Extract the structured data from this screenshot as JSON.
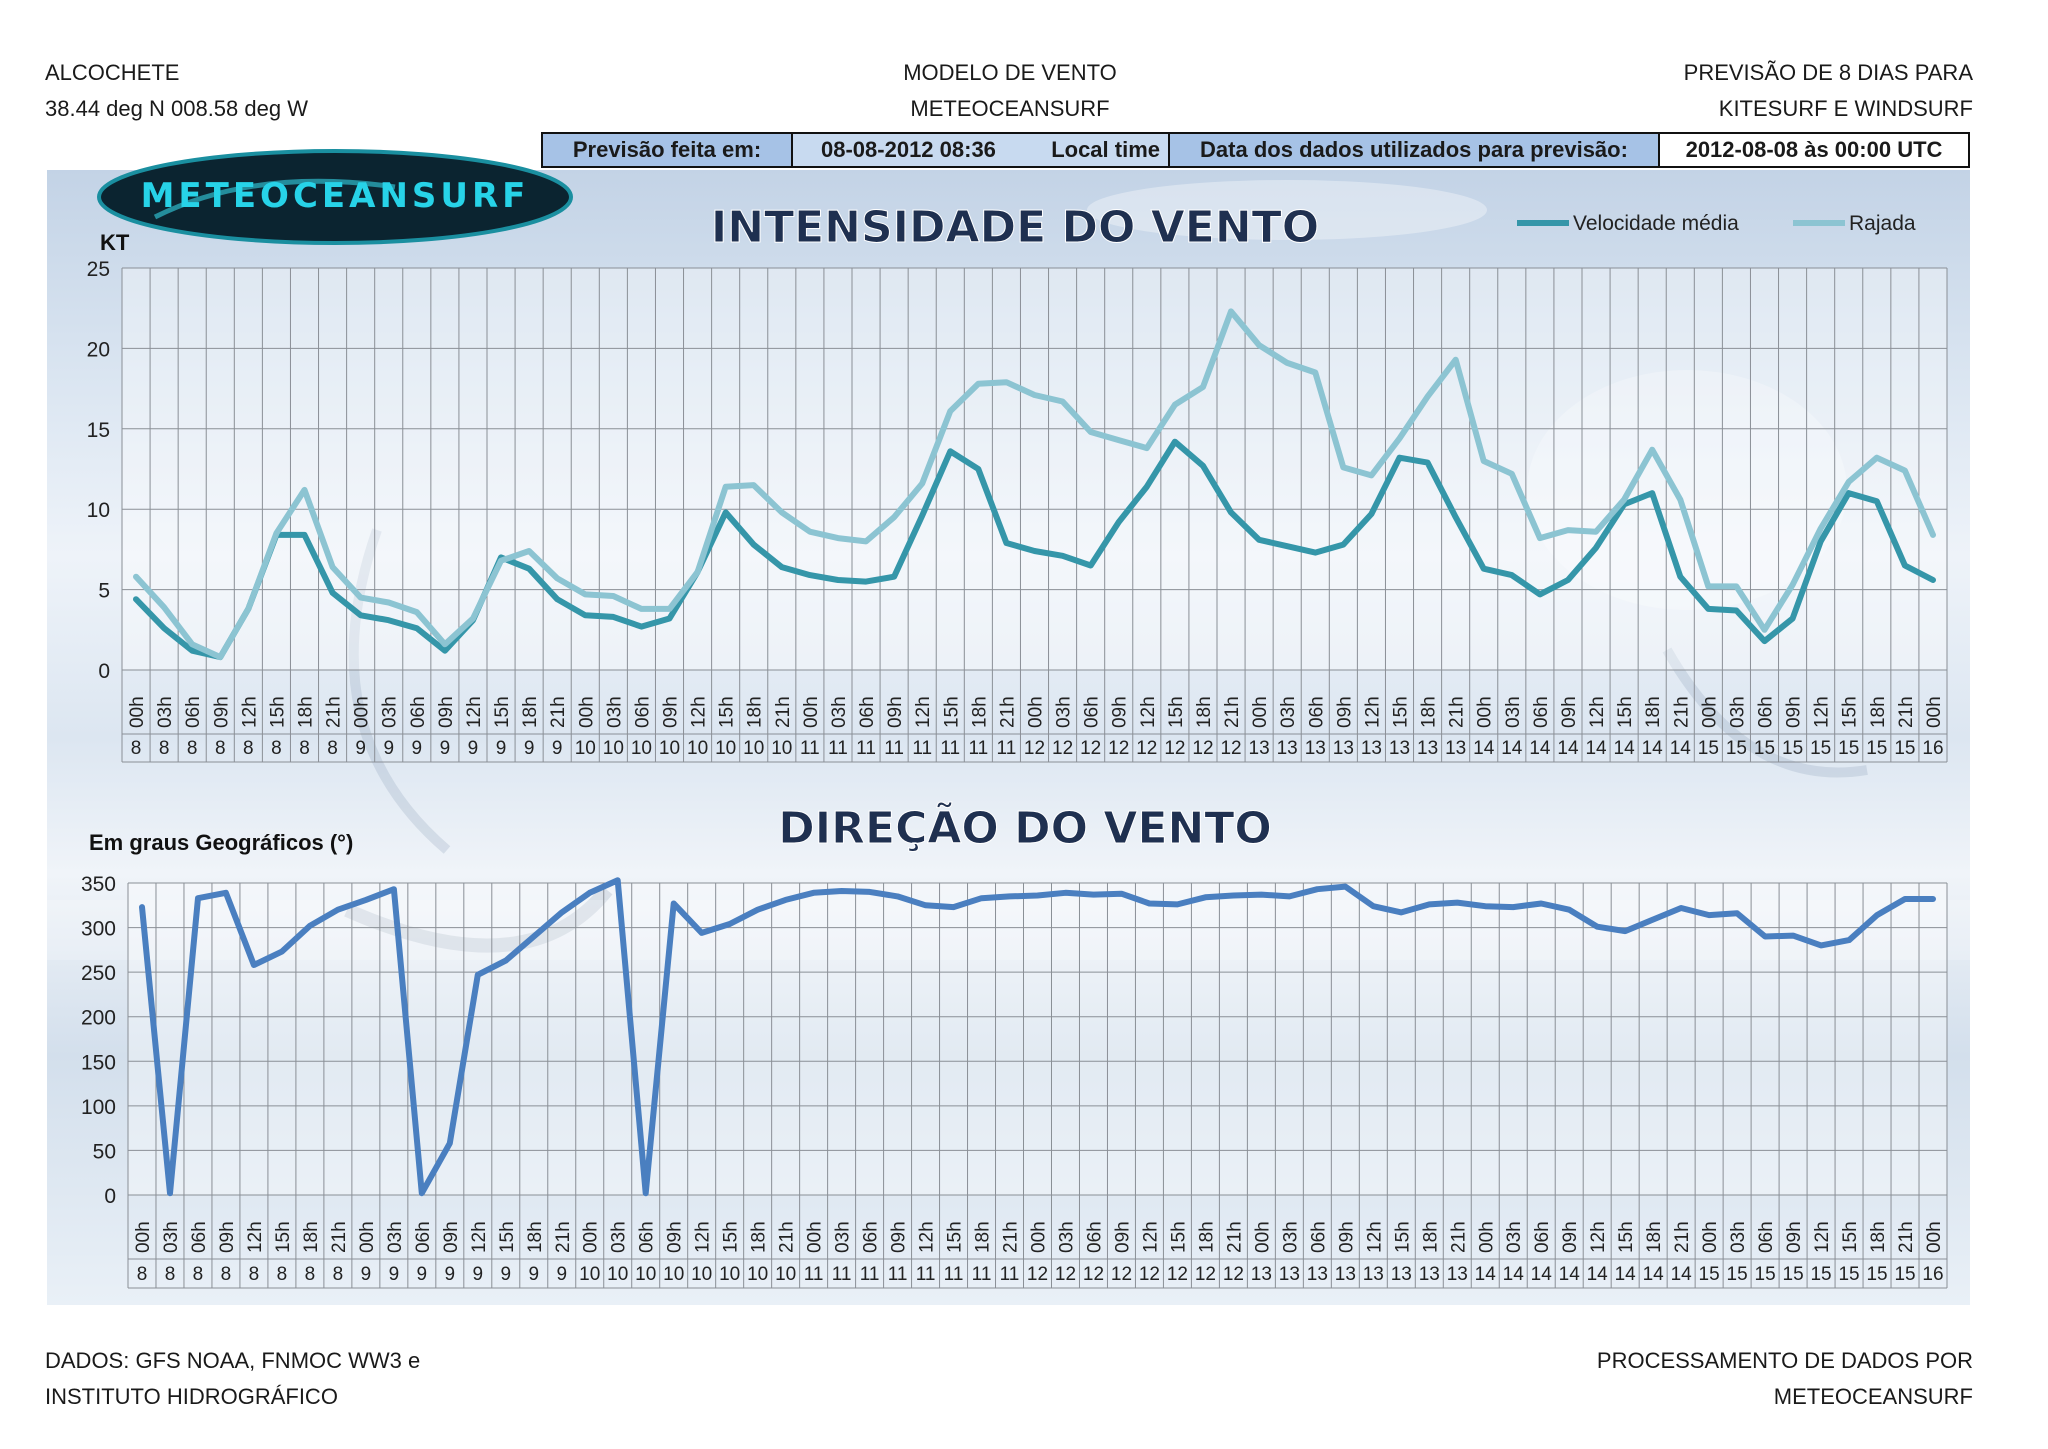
{
  "header": {
    "location_name": "ALCOCHETE",
    "coordinates": "38.44 deg N 008.58 deg W",
    "model_line1": "MODELO DE VENTO",
    "model_line2": "METEOCEANSURF",
    "forecast_line1": "PREVISÃO DE 8 DIAS PARA",
    "forecast_line2": "KITESURF E WINDSURF"
  },
  "infobar": {
    "made_label": "Previsão feita em:",
    "made_value": "08-08-2012 08:36",
    "local_time": "Local time",
    "data_label": "Data dos dados utilizados para previsão:",
    "data_value": "2012-08-08  às  00:00 UTC"
  },
  "logo": {
    "text": "METEOCEANSURF",
    "colors": {
      "ring": "#1a8fa0",
      "fill": "#0b2430",
      "text": "#27d3e8"
    }
  },
  "footer": {
    "left_line1": "DADOS: GFS NOAA, FNMOC WW3 e",
    "left_line2": "INSTITUTO HIDROGRÁFICO",
    "right_line1": "PROCESSAMENTO DE DADOS POR",
    "right_line2": "METEOCEANSURF"
  },
  "chart_data": [
    {
      "type": "line",
      "title": "INTENSIDADE DO VENTO",
      "ylabel": "KT",
      "ylim": [
        0,
        25
      ],
      "yticks": [
        0,
        5,
        10,
        15,
        20,
        25
      ],
      "grid": true,
      "legend_position": "top-right",
      "hours": [
        "00h",
        "03h",
        "06h",
        "09h",
        "12h",
        "15h",
        "18h",
        "21h",
        "00h",
        "03h",
        "06h",
        "09h",
        "12h",
        "15h",
        "18h",
        "21h",
        "00h",
        "03h",
        "06h",
        "09h",
        "12h",
        "15h",
        "18h",
        "21h",
        "00h",
        "03h",
        "06h",
        "09h",
        "12h",
        "15h",
        "18h",
        "21h",
        "00h",
        "03h",
        "06h",
        "09h",
        "12h",
        "15h",
        "18h",
        "21h",
        "00h",
        "03h",
        "06h",
        "09h",
        "12h",
        "15h",
        "18h",
        "21h",
        "00h",
        "03h",
        "06h",
        "09h",
        "12h",
        "15h",
        "18h",
        "21h",
        "00h",
        "03h",
        "06h",
        "09h",
        "12h",
        "15h",
        "18h",
        "21h",
        "00h"
      ],
      "days": [
        "8",
        "8",
        "8",
        "8",
        "8",
        "8",
        "8",
        "8",
        "9",
        "9",
        "9",
        "9",
        "9",
        "9",
        "9",
        "9",
        "10",
        "10",
        "10",
        "10",
        "10",
        "10",
        "10",
        "10",
        "11",
        "11",
        "11",
        "11",
        "11",
        "11",
        "11",
        "11",
        "12",
        "12",
        "12",
        "12",
        "12",
        "12",
        "12",
        "12",
        "13",
        "13",
        "13",
        "13",
        "13",
        "13",
        "13",
        "13",
        "14",
        "14",
        "14",
        "14",
        "14",
        "14",
        "14",
        "14",
        "15",
        "15",
        "15",
        "15",
        "15",
        "15",
        "15",
        "15",
        "16"
      ],
      "series": [
        {
          "name": "Velocidade média",
          "color": "#3596a9",
          "values": [
            4.4,
            2.6,
            1.2,
            0.8,
            3.8,
            8.4,
            8.4,
            4.8,
            3.4,
            3.1,
            2.6,
            1.2,
            3.1,
            7.0,
            6.3,
            4.4,
            3.4,
            3.3,
            2.7,
            3.2,
            6.1,
            9.8,
            7.8,
            6.4,
            5.9,
            5.6,
            5.5,
            5.8,
            9.6,
            13.6,
            12.5,
            7.9,
            7.4,
            7.1,
            6.5,
            9.2,
            11.4,
            14.2,
            12.7,
            9.8,
            8.1,
            7.7,
            7.3,
            7.8,
            9.7,
            13.2,
            12.9,
            9.5,
            6.3,
            5.9,
            4.7,
            5.6,
            7.6,
            10.3,
            11.0,
            5.8,
            3.8,
            3.7,
            1.8,
            3.2,
            8.0,
            11.0,
            10.5,
            6.5,
            5.6
          ]
        },
        {
          "name": "Rajada",
          "color": "#8cc4d2",
          "values": [
            5.8,
            3.9,
            1.6,
            0.8,
            3.8,
            8.5,
            11.2,
            6.4,
            4.5,
            4.2,
            3.6,
            1.6,
            3.2,
            6.8,
            7.4,
            5.7,
            4.7,
            4.6,
            3.8,
            3.8,
            6.1,
            11.4,
            11.5,
            9.8,
            8.6,
            8.2,
            8.0,
            9.5,
            11.6,
            16.1,
            17.8,
            17.9,
            17.1,
            16.7,
            14.8,
            14.3,
            13.8,
            16.5,
            17.6,
            22.3,
            20.2,
            19.1,
            18.5,
            12.6,
            12.1,
            14.4,
            17.0,
            19.3,
            13.0,
            12.2,
            8.2,
            8.7,
            8.6,
            10.6,
            13.7,
            10.6,
            5.2,
            5.2,
            2.5,
            5.3,
            8.8,
            11.7,
            13.2,
            12.4,
            8.4
          ]
        }
      ]
    },
    {
      "type": "line",
      "title": "DIREÇÃO DO VENTO",
      "ylabel": "Em graus Geográficos (°)",
      "ylim": [
        0,
        350
      ],
      "yticks": [
        0,
        50,
        100,
        150,
        200,
        250,
        300,
        350
      ],
      "grid": true,
      "hours": [
        "00h",
        "03h",
        "06h",
        "09h",
        "12h",
        "15h",
        "18h",
        "21h",
        "00h",
        "03h",
        "06h",
        "09h",
        "12h",
        "15h",
        "18h",
        "21h",
        "00h",
        "03h",
        "06h",
        "09h",
        "12h",
        "15h",
        "18h",
        "21h",
        "00h",
        "03h",
        "06h",
        "09h",
        "12h",
        "15h",
        "18h",
        "21h",
        "00h",
        "03h",
        "06h",
        "09h",
        "12h",
        "15h",
        "18h",
        "21h",
        "00h",
        "03h",
        "06h",
        "09h",
        "12h",
        "15h",
        "18h",
        "21h",
        "00h",
        "03h",
        "06h",
        "09h",
        "12h",
        "15h",
        "18h",
        "21h",
        "00h",
        "03h",
        "06h",
        "09h",
        "12h",
        "15h",
        "18h",
        "21h",
        "00h"
      ],
      "days": [
        "8",
        "8",
        "8",
        "8",
        "8",
        "8",
        "8",
        "8",
        "9",
        "9",
        "9",
        "9",
        "9",
        "9",
        "9",
        "9",
        "10",
        "10",
        "10",
        "10",
        "10",
        "10",
        "10",
        "10",
        "11",
        "11",
        "11",
        "11",
        "11",
        "11",
        "11",
        "11",
        "12",
        "12",
        "12",
        "12",
        "12",
        "12",
        "12",
        "12",
        "13",
        "13",
        "13",
        "13",
        "13",
        "13",
        "13",
        "13",
        "14",
        "14",
        "14",
        "14",
        "14",
        "14",
        "14",
        "14",
        "15",
        "15",
        "15",
        "15",
        "15",
        "15",
        "15",
        "15",
        "16"
      ],
      "series": [
        {
          "color": "#4a7fc0",
          "values": [
            323,
            2,
            333,
            339,
            258,
            273,
            302,
            320,
            331,
            343,
            2,
            58,
            247,
            263,
            290,
            317,
            339,
            353,
            2,
            327,
            294,
            304,
            320,
            331,
            339,
            341,
            340,
            335,
            325,
            323,
            333,
            335,
            336,
            339,
            337,
            338,
            327,
            326,
            334,
            336,
            337,
            335,
            343,
            346,
            324,
            317,
            326,
            328,
            324,
            323,
            327,
            320,
            301,
            296,
            309,
            322,
            314,
            316,
            290,
            291,
            280,
            286,
            314,
            332,
            332
          ]
        }
      ]
    }
  ]
}
